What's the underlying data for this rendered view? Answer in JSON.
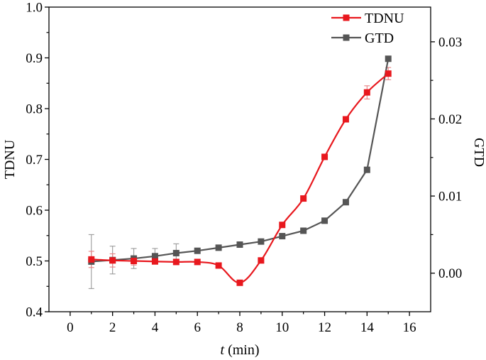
{
  "chart_data": {
    "type": "line",
    "title": "",
    "xlabel_italic": "t",
    "xlabel_rest": " (min)",
    "ylabel_left": "TDNU",
    "ylabel_right": "GTD",
    "xlim": [
      -1,
      17
    ],
    "ylim_left": [
      0.4,
      1.0
    ],
    "ylim_right": [
      -0.005,
      0.0345
    ],
    "x_ticks": [
      0,
      2,
      4,
      6,
      8,
      10,
      12,
      14,
      16
    ],
    "y_left_ticks": [
      0.4,
      0.5,
      0.6,
      0.7,
      0.8,
      0.9,
      1.0
    ],
    "y_right_ticks": [
      0.0,
      0.01,
      0.02,
      0.03
    ],
    "x_tick_labels": [
      "0",
      "2",
      "4",
      "6",
      "8",
      "10",
      "12",
      "14",
      "16"
    ],
    "y_left_tick_labels": [
      "0.4",
      "0.5",
      "0.6",
      "0.7",
      "0.8",
      "0.9",
      "1.0"
    ],
    "y_right_tick_labels": [
      "0.00",
      "0.01",
      "0.02",
      "0.03"
    ],
    "grid": false,
    "legend_position": "top-right",
    "series": [
      {
        "name": "TDNU",
        "axis": "left",
        "color": "#e8181e",
        "smooth": true,
        "x": [
          1,
          2,
          3,
          4,
          5,
          6,
          7,
          8,
          9,
          10,
          11,
          12,
          13,
          14,
          15
        ],
        "y": [
          0.503,
          0.501,
          0.5,
          0.499,
          0.498,
          0.498,
          0.491,
          0.457,
          0.501,
          0.571,
          0.623,
          0.705,
          0.779,
          0.832,
          0.869
        ],
        "error": [
          0.016,
          0.013,
          0.008,
          0.005,
          0.004,
          0,
          0,
          0,
          0,
          0,
          0,
          0,
          0,
          0.013,
          0.012
        ]
      },
      {
        "name": "GTD",
        "axis": "right",
        "color": "#555555",
        "smooth": false,
        "x": [
          1,
          2,
          3,
          4,
          5,
          6,
          7,
          8,
          9,
          10,
          11,
          12,
          13,
          14,
          15
        ],
        "y": [
          0.0015,
          0.0017,
          0.0019,
          0.0022,
          0.0026,
          0.0029,
          0.0033,
          0.0037,
          0.0041,
          0.0048,
          0.0055,
          0.0068,
          0.0092,
          0.0134,
          0.0278
        ],
        "error": [
          0.0035,
          0.0018,
          0.0013,
          0.001,
          0.0012,
          0,
          0,
          0,
          0,
          0,
          0,
          0,
          0,
          0,
          0
        ]
      }
    ]
  }
}
